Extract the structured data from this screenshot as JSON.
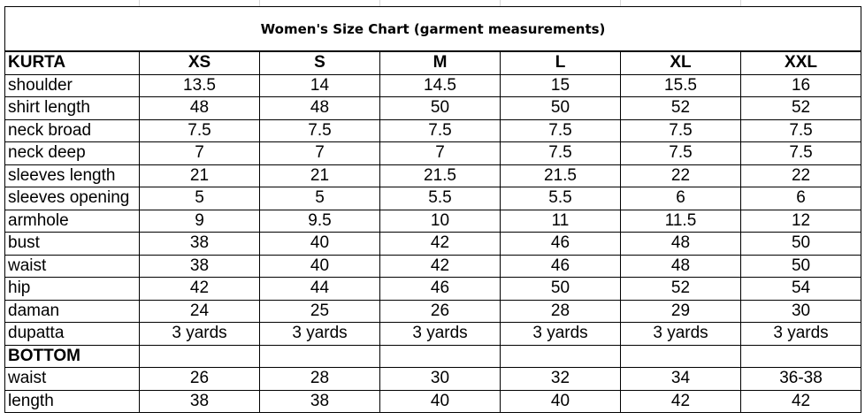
{
  "title": "Women's Size Chart (garment measurements)",
  "sizes": [
    "XS",
    "S",
    "M",
    "L",
    "XL",
    "XXL"
  ],
  "kurta": {
    "label": "KURTA",
    "rows": [
      {
        "name": "shoulder",
        "values": [
          "13.5",
          "14",
          "14.5",
          "15",
          "15.5",
          "16"
        ]
      },
      {
        "name": "shirt length",
        "values": [
          "48",
          "48",
          "50",
          "50",
          "52",
          "52"
        ]
      },
      {
        "name": "neck broad",
        "values": [
          "7.5",
          "7.5",
          "7.5",
          "7.5",
          "7.5",
          "7.5"
        ]
      },
      {
        "name": "neck deep",
        "values": [
          "7",
          "7",
          "7",
          "7.5",
          "7.5",
          "7.5"
        ]
      },
      {
        "name": "sleeves length",
        "values": [
          "21",
          "21",
          "21.5",
          "21.5",
          "22",
          "22"
        ]
      },
      {
        "name": "sleeves opening",
        "values": [
          "5",
          "5",
          "5.5",
          "5.5",
          "6",
          "6"
        ]
      },
      {
        "name": "armhole",
        "values": [
          "9",
          "9.5",
          "10",
          "11",
          "11.5",
          "12"
        ]
      },
      {
        "name": "bust",
        "values": [
          "38",
          "40",
          "42",
          "46",
          "48",
          "50"
        ]
      },
      {
        "name": "waist",
        "values": [
          "38",
          "40",
          "42",
          "46",
          "48",
          "50"
        ]
      },
      {
        "name": "hip",
        "values": [
          "42",
          "44",
          "46",
          "50",
          "52",
          "54"
        ]
      },
      {
        "name": "daman",
        "values": [
          "24",
          "25",
          "26",
          "28",
          "29",
          "30"
        ]
      },
      {
        "name": "dupatta",
        "values": [
          "3 yards",
          "3 yards",
          "3 yards",
          "3 yards",
          "3 yards",
          "3 yards"
        ]
      }
    ]
  },
  "bottom": {
    "label": "BOTTOM",
    "rows": [
      {
        "name": "waist",
        "values": [
          "26",
          "28",
          "30",
          "32",
          "34",
          "36-38"
        ]
      },
      {
        "name": "length",
        "values": [
          "38",
          "38",
          "40",
          "40",
          "42",
          "42"
        ]
      }
    ]
  }
}
